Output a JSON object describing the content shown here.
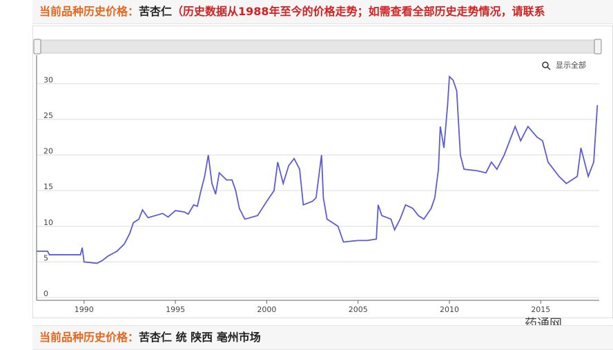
{
  "header": {
    "label": "当前品种历史价格：",
    "item": "苦杏仁",
    "note": "（历史数据从1988年至今的价格走势；如需查看全部历史走势情况，请联系"
  },
  "zoom_button": "显示全部",
  "chart_data": {
    "type": "line",
    "x": [
      1987.4,
      1988.0,
      1988.1,
      1989.8,
      1989.9,
      1990.0,
      1990.7,
      1991.0,
      1991.3,
      1991.8,
      1992.2,
      1992.5,
      1992.7,
      1993.0,
      1993.2,
      1993.5,
      1994.3,
      1994.6,
      1995.0,
      1995.5,
      1995.7,
      1996.0,
      1996.2,
      1996.4,
      1996.6,
      1996.8,
      1997.0,
      1997.2,
      1997.4,
      1997.8,
      1998.1,
      1998.3,
      1998.5,
      1998.8,
      1999.5,
      2000.0,
      2000.4,
      2000.6,
      2000.9,
      2001.2,
      2001.5,
      2001.8,
      2002.0,
      2002.5,
      2002.7,
      2003.0,
      2003.1,
      2003.3,
      2003.9,
      2004.2,
      2005.0,
      2005.5,
      2006.0,
      2006.1,
      2006.3,
      2006.8,
      2007.0,
      2007.3,
      2007.6,
      2008.0,
      2008.3,
      2008.6,
      2009.0,
      2009.2,
      2009.4,
      2009.5,
      2009.7,
      2009.9,
      2010.0,
      2010.2,
      2010.4,
      2010.6,
      2010.8,
      2011.5,
      2012.0,
      2012.3,
      2012.6,
      2013.0,
      2013.3,
      2013.6,
      2013.9,
      2014.3,
      2014.8,
      2015.1,
      2015.4,
      2015.7,
      2016.0,
      2016.4,
      2017.0,
      2017.2,
      2017.6,
      2017.9,
      2018.0,
      2018.1
    ],
    "series": [
      {
        "color": "#5b5bd6",
        "values": [
          6.5,
          6.5,
          6,
          6,
          7,
          5,
          4.8,
          5.2,
          5.8,
          6.5,
          7.5,
          9,
          10.5,
          11,
          12.3,
          11.2,
          11.8,
          11.3,
          12.2,
          12,
          11.7,
          13,
          12.8,
          15,
          17,
          20,
          16,
          14.5,
          17.5,
          16.5,
          16.5,
          15,
          12.5,
          11,
          11.5,
          13.5,
          15,
          19,
          16,
          18.5,
          19.5,
          18,
          13,
          13.5,
          14,
          20,
          14,
          11,
          10,
          7.8,
          8,
          8,
          8.2,
          13,
          11.5,
          11,
          9.5,
          11,
          13,
          12.5,
          11.5,
          11,
          12.5,
          14,
          18,
          24,
          21,
          27,
          31,
          30.5,
          29,
          20,
          18,
          17.8,
          17.5,
          19,
          18,
          20,
          22,
          24,
          22,
          24,
          22.5,
          22,
          19,
          18,
          17,
          16,
          17,
          21,
          17,
          19,
          23,
          27
        ]
      }
    ],
    "xlim": [
      1987.4,
      2018.2
    ],
    "ylim": [
      0,
      34
    ],
    "xticks": [
      1990,
      1995,
      2000,
      2005,
      2010,
      2015
    ],
    "yticks": [
      0,
      5,
      10,
      15,
      20,
      25,
      30
    ],
    "grid": true
  },
  "footer": {
    "label": "当前品种历史价格：",
    "item": "苦杏仁 统 陕西 亳州市场"
  },
  "watermark": "药通网"
}
